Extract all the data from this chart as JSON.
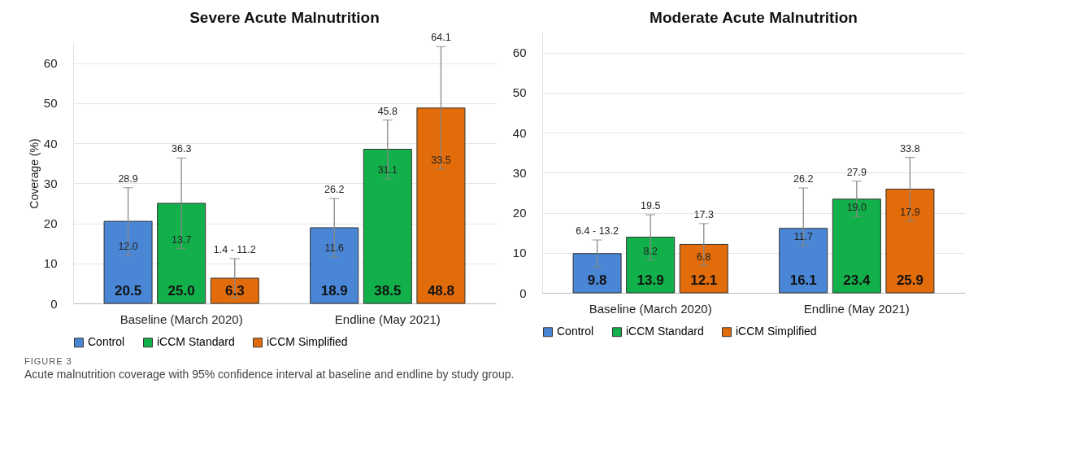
{
  "chart_data": [
    {
      "type": "bar",
      "title": "Severe Acute Malnutrition",
      "ylabel": "Coverage (%)",
      "categories": [
        "Baseline (March 2020)",
        "Endline (May 2021)"
      ],
      "series": [
        {
          "name": "Control",
          "color": "#4a86d6",
          "values": [
            20.5,
            18.9
          ],
          "value_labels": [
            "20.5",
            "18.9"
          ],
          "errors": [
            [
              12.0,
              28.9
            ],
            [
              11.6,
              26.2
            ]
          ]
        },
        {
          "name": "iCCM Standard",
          "color": "#12b04a",
          "values": [
            25.0,
            38.5
          ],
          "value_labels": [
            "25.0",
            "38.5"
          ],
          "errors": [
            [
              13.7,
              36.3
            ],
            [
              31.1,
              45.8
            ]
          ]
        },
        {
          "name": "iCCM Simplified",
          "color": "#e36c0a",
          "values": [
            6.3,
            48.8
          ],
          "value_labels": [
            "6.3",
            "48.8"
          ],
          "errors": [
            [
              1.4,
              11.2
            ],
            [
              33.5,
              64.1
            ]
          ]
        }
      ],
      "ylim": [
        0,
        65
      ],
      "yticks": [
        0,
        10,
        20,
        30,
        40,
        50,
        60
      ],
      "grid": "y",
      "legend": "bottom",
      "annotations": [
        "28.9",
        "12.0",
        "36.3",
        "13.7",
        "1.4 - 11.2",
        "26.2",
        "11.6",
        "45.8",
        "31.1",
        "64.1",
        "33.5",
        "FIGURE 3",
        "Acute malnutrition coverage with 95% confidence interval at baseline and endline by study group."
      ]
    },
    {
      "type": "bar",
      "title": "Moderate Acute Malnutrition",
      "categories": [
        "Baseline (March 2020)",
        "Endline (May 2021)"
      ],
      "series": [
        {
          "name": "Control",
          "color": "#4a86d6",
          "values": [
            9.8,
            16.1
          ],
          "value_labels": [
            "9.8",
            "16.1"
          ],
          "errors": [
            [
              6.4,
              13.2
            ],
            [
              11.7,
              26.2
            ]
          ]
        },
        {
          "name": "iCCM Standard",
          "color": "#12b04a",
          "values": [
            13.9,
            23.4
          ],
          "value_labels": [
            "13.9",
            "23.4"
          ],
          "errors": [
            [
              8.2,
              19.5
            ],
            [
              19.0,
              27.9
            ]
          ]
        },
        {
          "name": "iCCM Simplified",
          "color": "#e36c0a",
          "values": [
            12.1,
            25.9
          ],
          "value_labels": [
            "12.1",
            "25.9"
          ],
          "errors": [
            [
              6.8,
              17.3
            ],
            [
              17.9,
              33.8
            ]
          ]
        }
      ],
      "ylim": [
        0,
        65
      ],
      "yticks": [
        0,
        10,
        20,
        30,
        40,
        50,
        60
      ],
      "grid": "y",
      "legend": "bottom",
      "annotations": [
        "6.4 - 13.2",
        "19.5",
        "8.2",
        "17.3",
        "6.8",
        "26.2",
        "11.7",
        "27.9",
        "19.0",
        "33.8",
        "17.9"
      ]
    }
  ]
}
